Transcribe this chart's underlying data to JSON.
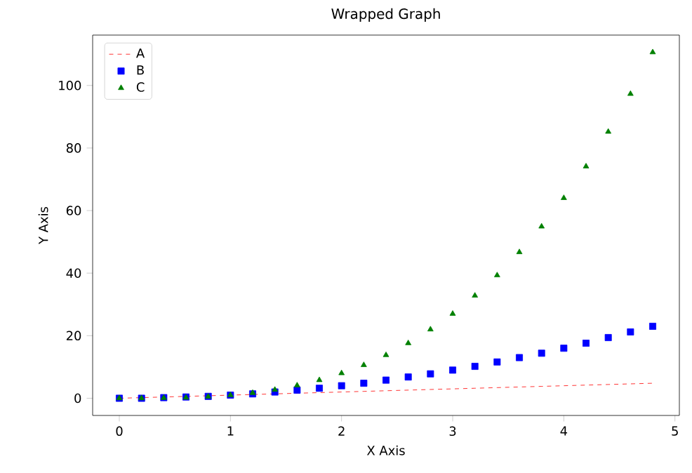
{
  "chart_data": {
    "type": "line",
    "title": "Wrapped Graph",
    "xlabel": "X Axis",
    "ylabel": "Y Axis",
    "x": [
      0,
      0.2,
      0.4,
      0.6,
      0.8,
      1.0,
      1.2,
      1.4,
      1.6,
      1.8,
      2.0,
      2.2,
      2.4,
      2.6,
      2.8,
      3.0,
      3.2,
      3.4,
      3.6,
      3.8,
      4.0,
      4.2,
      4.4,
      4.6,
      4.8
    ],
    "series": [
      {
        "name": "A",
        "color": "#ff0000",
        "line_style": "dashed",
        "marker": "none",
        "values": [
          0,
          0.2,
          0.4,
          0.6,
          0.8,
          1.0,
          1.2,
          1.4,
          1.6,
          1.8,
          2.0,
          2.2,
          2.4,
          2.6,
          2.8,
          3.0,
          3.2,
          3.4,
          3.6,
          3.8,
          4.0,
          4.2,
          4.4,
          4.6,
          4.8
        ]
      },
      {
        "name": "B",
        "type": "scatter",
        "color": "#0000ff",
        "marker": "square",
        "values": [
          0,
          0,
          0.2,
          0.4,
          0.6,
          1.0,
          1.4,
          2.0,
          2.6,
          3.2,
          4.0,
          4.8,
          5.8,
          6.8,
          7.8,
          9.0,
          10.2,
          11.6,
          13.0,
          14.4,
          16.0,
          17.6,
          19.4,
          21.2,
          23.0
        ]
      },
      {
        "name": "C",
        "type": "scatter",
        "color": "#008000",
        "marker": "triangle",
        "values": [
          0,
          0,
          0.1,
          0.2,
          0.5,
          1.0,
          1.7,
          2.7,
          4.1,
          5.8,
          8.0,
          10.6,
          13.8,
          17.6,
          22.0,
          27.0,
          32.8,
          39.3,
          46.7,
          54.9,
          64.0,
          74.1,
          85.2,
          97.3,
          110.6
        ]
      }
    ],
    "xlim": [
      -0.24,
      5.04
    ],
    "ylim": [
      -5.5,
      116.1
    ],
    "xticks": [
      0,
      1,
      2,
      3,
      4,
      5
    ],
    "yticks": [
      0,
      20,
      40,
      60,
      80,
      100
    ],
    "legend": "top left",
    "grid": false
  }
}
